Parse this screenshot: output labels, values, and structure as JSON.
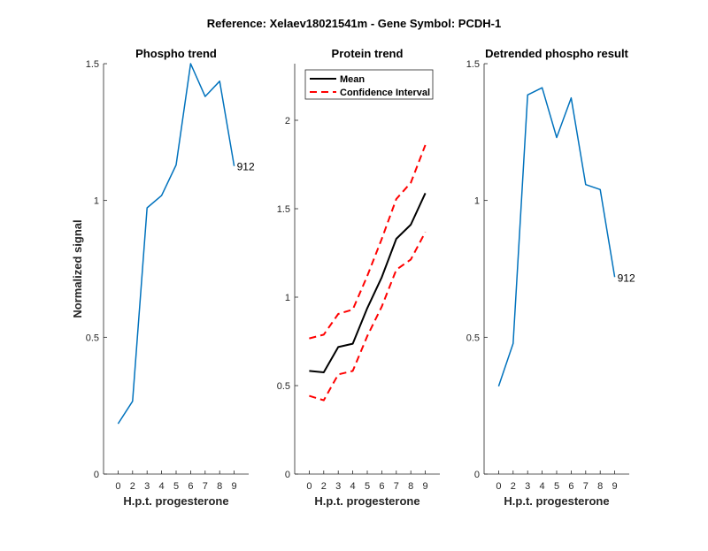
{
  "figure_title": "Reference:  Xelaev18021541m - Gene Symbol:  PCDH-1",
  "chart_data": [
    {
      "type": "line",
      "title": "Phospho trend",
      "xlabel": "H.p.t. progesterone",
      "ylabel": "Normalized signal",
      "categories": [
        "0",
        "2",
        "3",
        "4",
        "5",
        "6",
        "7",
        "8",
        "9"
      ],
      "ylim": [
        0,
        1.5
      ],
      "yticks": [
        0,
        0.5,
        1,
        1.5
      ],
      "ytick_labels": [
        "0",
        "0.5",
        "1",
        "1.5"
      ],
      "series": [
        {
          "name": "912",
          "color": "#0072BD",
          "values": [
            0.184,
            0.266,
            0.973,
            1.018,
            1.13,
            1.5,
            1.38,
            1.436,
            1.126
          ]
        }
      ],
      "annotation": "912",
      "grid": false
    },
    {
      "type": "line",
      "title": "Protein trend",
      "xlabel": "H.p.t. progesterone",
      "ylabel": "",
      "categories": [
        "0",
        "2",
        "3",
        "4",
        "5",
        "6",
        "7",
        "8",
        "9"
      ],
      "ylim": [
        0,
        2.32
      ],
      "yticks": [
        0,
        0.5,
        1,
        1.5,
        2
      ],
      "ytick_labels": [
        "0",
        "0.5",
        "1",
        "1.5",
        "2"
      ],
      "series": [
        {
          "name": "Mean",
          "color": "#000000",
          "style": "solid",
          "values": [
            0.583,
            0.575,
            0.718,
            0.737,
            0.938,
            1.113,
            1.33,
            1.41,
            1.588
          ]
        },
        {
          "name": "Confidence Interval",
          "color": "#FF0000",
          "style": "dashed",
          "values": [
            0.767,
            0.788,
            0.905,
            0.93,
            1.12,
            1.33,
            1.555,
            1.647,
            1.86
          ]
        },
        {
          "name": "Confidence Interval (lower)",
          "color": "#FF0000",
          "style": "dashed",
          "values": [
            0.442,
            0.417,
            0.563,
            0.583,
            0.78,
            0.947,
            1.155,
            1.213,
            1.368
          ]
        }
      ],
      "legend": {
        "placement": "top-left",
        "entries": [
          "Mean",
          "Confidence Interval"
        ]
      },
      "grid": false
    },
    {
      "type": "line",
      "title": "Detrended phospho result",
      "xlabel": "H.p.t. progesterone",
      "ylabel": "",
      "categories": [
        "0",
        "2",
        "3",
        "4",
        "5",
        "6",
        "7",
        "8",
        "9"
      ],
      "ylim": [
        0,
        1.5
      ],
      "yticks": [
        0,
        0.5,
        1,
        1.5
      ],
      "ytick_labels": [
        "0",
        "0.5",
        "1",
        "1.5"
      ],
      "series": [
        {
          "name": "912",
          "color": "#0072BD",
          "values": [
            0.321,
            0.477,
            1.386,
            1.412,
            1.23,
            1.375,
            1.058,
            1.04,
            0.72
          ]
        }
      ],
      "annotation": "912",
      "grid": false
    }
  ]
}
